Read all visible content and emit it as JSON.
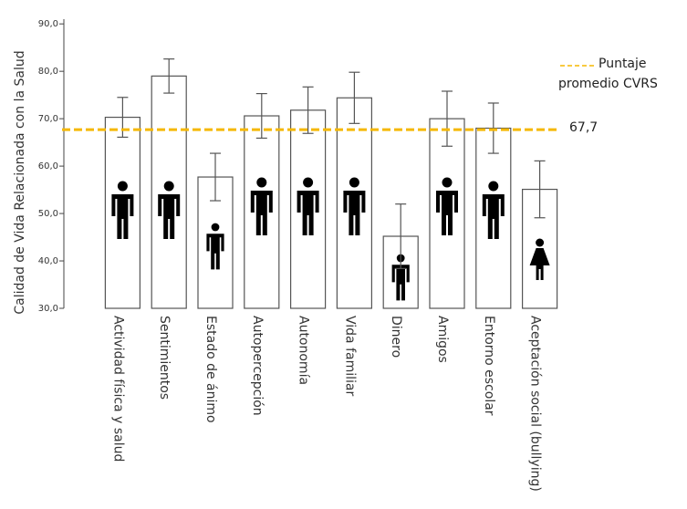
{
  "chart_data": {
    "type": "bar",
    "y_label": "Calidad de Vida Relacionada con la Salud",
    "categories": [
      "Actividad física y salud",
      "Sentimientos",
      "Estado de ánimo",
      "Autopercepción",
      "Autonomía",
      "Vida familiar",
      "Dinero",
      "Amigos",
      "Entorno escolar",
      "Aceptación social (bullying)"
    ],
    "values": [
      70.3,
      79.0,
      57.7,
      70.6,
      71.8,
      74.4,
      45.2,
      70.0,
      68.0,
      55.1
    ],
    "errors": [
      4.2,
      3.6,
      5.0,
      4.7,
      4.9,
      5.4,
      6.8,
      5.8,
      5.3,
      6.0
    ],
    "color": "#ffffff",
    "ylim": [
      30,
      91
    ],
    "yticks": [
      {
        "value": 30,
        "label": "30,0"
      },
      {
        "value": 40,
        "label": "40,0"
      },
      {
        "value": 50,
        "label": "50,0"
      },
      {
        "value": 60,
        "label": "60,0"
      },
      {
        "value": 70,
        "label": "70,0"
      },
      {
        "value": 80,
        "label": "80,0"
      },
      {
        "value": 90,
        "label": "90,0"
      }
    ],
    "reference_line": {
      "value": 67.7,
      "label": "67,7",
      "name": "Puntaje promedio CVRS",
      "color": "#f5b800"
    }
  }
}
